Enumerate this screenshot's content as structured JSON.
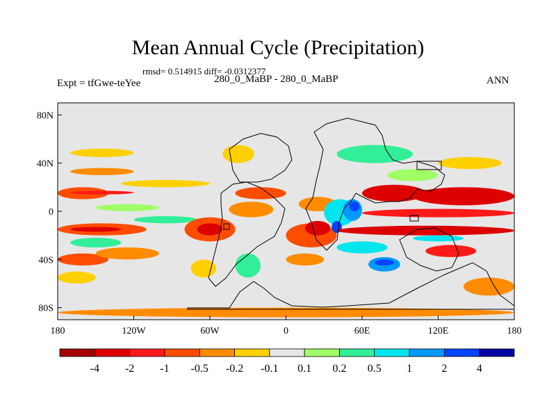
{
  "chart_data": {
    "type": "heatmap",
    "title": "Mean Annual Cycle (Precipitation)",
    "stats_line": "rmsd= 0.514915 diff= -0.0312377",
    "left_label": "Expt = tfGwe-teYee",
    "center_label": "280_0_MaBP - 280_0_MaBP",
    "right_label": "ANN",
    "xlim": [
      -180,
      180
    ],
    "ylim": [
      -90,
      90
    ],
    "x_ticks": [
      {
        "value": -180,
        "label": "180"
      },
      {
        "value": -120,
        "label": "120W"
      },
      {
        "value": -60,
        "label": "60W"
      },
      {
        "value": 0,
        "label": "0"
      },
      {
        "value": 60,
        "label": "60E"
      },
      {
        "value": 120,
        "label": "120E"
      },
      {
        "value": 180,
        "label": "180"
      }
    ],
    "y_ticks": [
      {
        "value": 80,
        "label": "80N"
      },
      {
        "value": 40,
        "label": "40N"
      },
      {
        "value": 0,
        "label": "0"
      },
      {
        "value": -40,
        "label": "40S"
      },
      {
        "value": -80,
        "label": "80S"
      }
    ],
    "colorbar": {
      "labels": [
        "-4",
        "-2",
        "-1",
        "-0.5",
        "-0.2",
        "-0.1",
        "0.1",
        "0.2",
        "0.5",
        "1",
        "2",
        "4"
      ],
      "colors": [
        "#a50000",
        "#dd0000",
        "#ff1a1a",
        "#ff4d00",
        "#ff8c00",
        "#ffd000",
        "#e6e6e6",
        "#a0ff66",
        "#33ee99",
        "#00e5ee",
        "#0099ff",
        "#0044ff",
        "#0000a0"
      ]
    },
    "regions": [
      {
        "lon": [
          -180,
          -140
        ],
        "lat": [
          10,
          20
        ],
        "bin": 3
      },
      {
        "lon": [
          -170,
          -120
        ],
        "lat": [
          14,
          17
        ],
        "bin": 2
      },
      {
        "lon": [
          -180,
          -110
        ],
        "lat": [
          -20,
          -10
        ],
        "bin": 3
      },
      {
        "lon": [
          -170,
          -130
        ],
        "lat": [
          -17,
          -13
        ],
        "bin": 1
      },
      {
        "lon": [
          -180,
          -140
        ],
        "lat": [
          -45,
          -35
        ],
        "bin": 3
      },
      {
        "lon": [
          -150,
          -100
        ],
        "lat": [
          -40,
          -30
        ],
        "bin": 4
      },
      {
        "lon": [
          -180,
          -150
        ],
        "lat": [
          -60,
          -50
        ],
        "bin": 5
      },
      {
        "lon": [
          -170,
          -120
        ],
        "lat": [
          30,
          36
        ],
        "bin": 4
      },
      {
        "lon": [
          -130,
          -60
        ],
        "lat": [
          20,
          26
        ],
        "bin": 5
      },
      {
        "lon": [
          -150,
          -100
        ],
        "lat": [
          0,
          6
        ],
        "bin": 7
      },
      {
        "lon": [
          -170,
          -130
        ],
        "lat": [
          -30,
          -22
        ],
        "bin": 8
      },
      {
        "lon": [
          -120,
          -70
        ],
        "lat": [
          -10,
          -4
        ],
        "bin": 8
      },
      {
        "lon": [
          -170,
          -120
        ],
        "lat": [
          45,
          52
        ],
        "bin": 5
      },
      {
        "lon": [
          -80,
          -40
        ],
        "lat": [
          -25,
          -5
        ],
        "bin": 3
      },
      {
        "lon": [
          -70,
          -50
        ],
        "lat": [
          -20,
          -10
        ],
        "bin": 1
      },
      {
        "lon": [
          -45,
          -10
        ],
        "lat": [
          -5,
          8
        ],
        "bin": 4
      },
      {
        "lon": [
          -40,
          0
        ],
        "lat": [
          10,
          20
        ],
        "bin": 3
      },
      {
        "lon": [
          -50,
          -25
        ],
        "lat": [
          40,
          55
        ],
        "bin": 5
      },
      {
        "lon": [
          -75,
          -55
        ],
        "lat": [
          -55,
          -40
        ],
        "bin": 5
      },
      {
        "lon": [
          -40,
          -20
        ],
        "lat": [
          -55,
          -35
        ],
        "bin": 8
      },
      {
        "lon": [
          0,
          40
        ],
        "lat": [
          -30,
          -10
        ],
        "bin": 3
      },
      {
        "lon": [
          15,
          35
        ],
        "lat": [
          -20,
          -8
        ],
        "bin": 1
      },
      {
        "lon": [
          0,
          30
        ],
        "lat": [
          -45,
          -35
        ],
        "bin": 4
      },
      {
        "lon": [
          10,
          40
        ],
        "lat": [
          0,
          12
        ],
        "bin": 4
      },
      {
        "lon": [
          30,
          55
        ],
        "lat": [
          -12,
          10
        ],
        "bin": 9
      },
      {
        "lon": [
          36,
          44
        ],
        "lat": [
          -18,
          -8
        ],
        "bin": 11
      },
      {
        "lon": [
          45,
          60
        ],
        "lat": [
          -8,
          10
        ],
        "bin": 10
      },
      {
        "lon": [
          50,
          58
        ],
        "lat": [
          0,
          8
        ],
        "bin": 11
      },
      {
        "lon": [
          40,
          80
        ],
        "lat": [
          -35,
          -25
        ],
        "bin": 9
      },
      {
        "lon": [
          65,
          90
        ],
        "lat": [
          -50,
          -38
        ],
        "bin": 10
      },
      {
        "lon": [
          70,
          85
        ],
        "lat": [
          -45,
          -40
        ],
        "bin": 11
      },
      {
        "lon": [
          60,
          110
        ],
        "lat": [
          8,
          22
        ],
        "bin": 1
      },
      {
        "lon": [
          100,
          180
        ],
        "lat": [
          5,
          20
        ],
        "bin": 1
      },
      {
        "lon": [
          60,
          180
        ],
        "lat": [
          -5,
          2
        ],
        "bin": 2
      },
      {
        "lon": [
          40,
          180
        ],
        "lat": [
          -20,
          -12
        ],
        "bin": 1
      },
      {
        "lon": [
          110,
          150
        ],
        "lat": [
          -38,
          -28
        ],
        "bin": 2
      },
      {
        "lon": [
          140,
          180
        ],
        "lat": [
          -70,
          -55
        ],
        "bin": 4
      },
      {
        "lon": [
          120,
          170
        ],
        "lat": [
          35,
          45
        ],
        "bin": 5
      },
      {
        "lon": [
          40,
          100
        ],
        "lat": [
          40,
          55
        ],
        "bin": 8
      },
      {
        "lon": [
          80,
          120
        ],
        "lat": [
          25,
          35
        ],
        "bin": 7
      },
      {
        "lon": [
          -180,
          180
        ],
        "lat": [
          -88,
          -80
        ],
        "bin": 4
      },
      {
        "lon": [
          100,
          140
        ],
        "lat": [
          -25,
          -20
        ],
        "bin": 9
      }
    ]
  }
}
